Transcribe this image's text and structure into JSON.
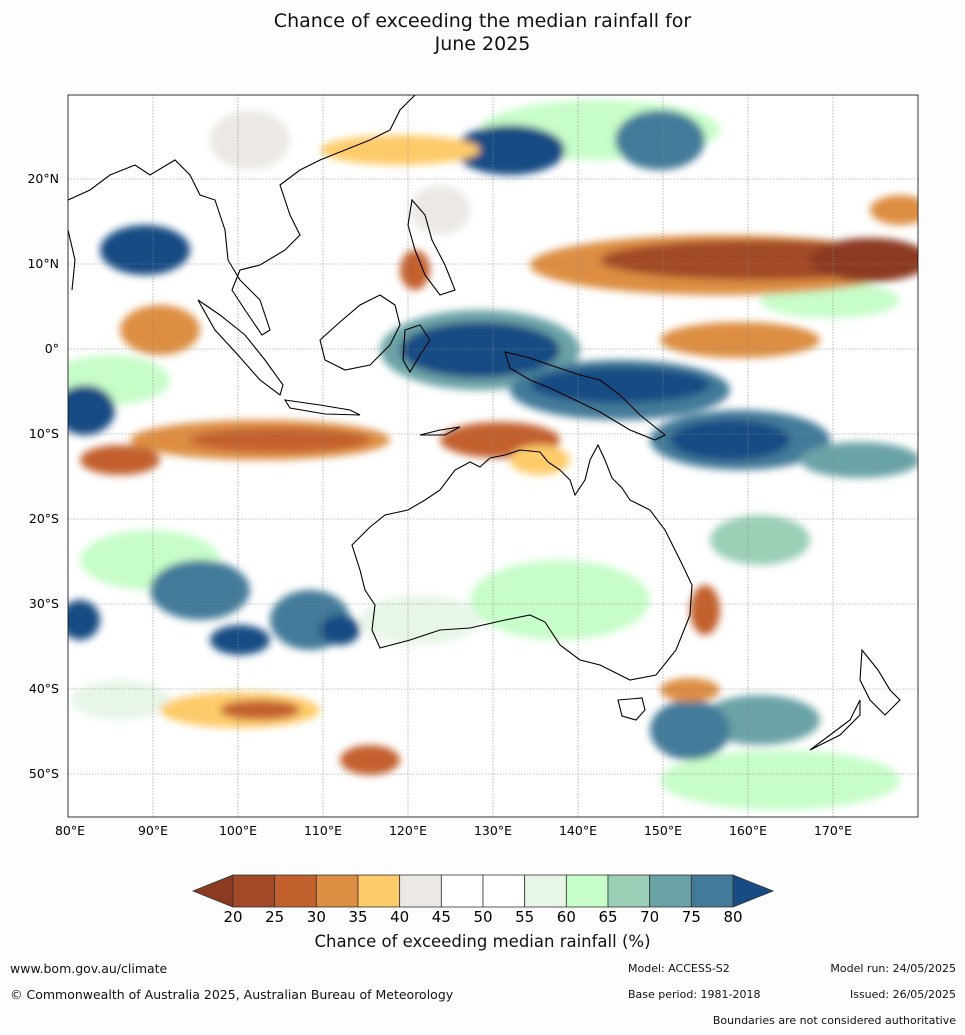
{
  "title_line1": "Chance of exceeding the median rainfall for",
  "title_line2": "June 2025",
  "map": {
    "lon_labels": [
      "80°E",
      "90°E",
      "100°E",
      "110°E",
      "120°E",
      "130°E",
      "140°E",
      "150°E",
      "160°E",
      "170°E"
    ],
    "lat_labels": [
      "20°N",
      "10°N",
      "0°",
      "10°S",
      "20°S",
      "30°S",
      "40°S",
      "50°S"
    ]
  },
  "colorbar": {
    "title": "Chance of exceeding median rainfall (%)",
    "ticks": [
      "20",
      "25",
      "30",
      "35",
      "40",
      "45",
      "50",
      "55",
      "60",
      "65",
      "70",
      "75",
      "80"
    ],
    "colors": [
      "#a24a27",
      "#c3612e",
      "#dd8e43",
      "#fecb6b",
      "#ece9e4",
      "#ffffff",
      "#ffffff",
      "#e7f6e7",
      "#c7fdc9",
      "#9bcfb6",
      "#6aa3a6",
      "#427a99"
    ],
    "under_color": "#8c3a20",
    "over_color": "#174b83"
  },
  "footer": {
    "website": "www.bom.gov.au/climate",
    "copyright": "© Commonwealth of Australia 2025, Australian Bureau of Meteorology",
    "model": "Model: ACCESS-S2",
    "base_period": "Base period: 1981-2018",
    "model_run": "Model run: 24/05/2025",
    "issued": "Issued: 26/05/2025",
    "disclaimer": "Boundaries are not considered authoritative"
  }
}
